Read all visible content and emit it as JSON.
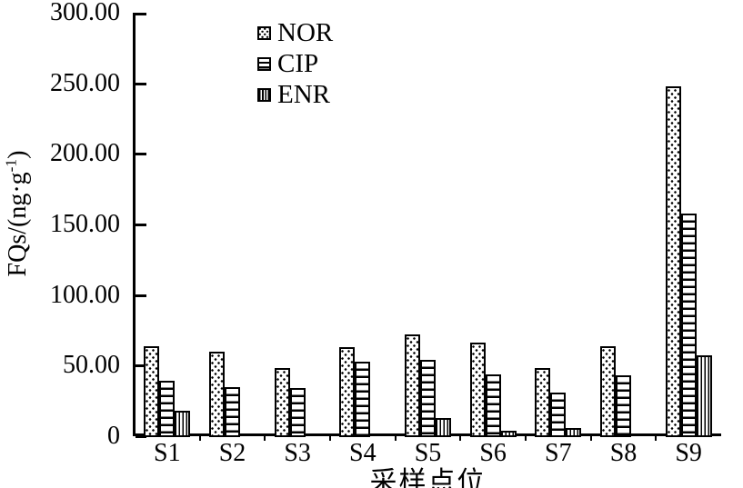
{
  "chart_data": {
    "type": "bar",
    "title": "",
    "categories": [
      "S1",
      "S2",
      "S3",
      "S4",
      "S5",
      "S6",
      "S7",
      "S8",
      "S9"
    ],
    "series": [
      {
        "name": "NOR",
        "pattern": "dots",
        "values": [
          64,
          60,
          48,
          63,
          72,
          66,
          48,
          64,
          248
        ]
      },
      {
        "name": "CIP",
        "pattern": "hlines",
        "values": [
          39,
          35,
          34,
          53,
          54,
          44,
          31,
          43,
          158
        ]
      },
      {
        "name": "ENR",
        "pattern": "vlines",
        "values": [
          18,
          0,
          0,
          0,
          13,
          4,
          6,
          0,
          57
        ]
      }
    ],
    "xlabel": "采样点位",
    "ylabel": "FQs/(ng·g⁻¹)",
    "ylabel_parts": {
      "main": "FQs/(ng·g",
      "sup": "-1",
      "close": ")"
    },
    "ylim": [
      0,
      300
    ],
    "ytick_step": 50,
    "ytick_labels": [
      "300.00",
      "250.00",
      "200.00",
      "150.00",
      "100.00",
      "50.00",
      "0"
    ],
    "grid": false,
    "legend_position": "inside-top-left",
    "colors": {
      "foreground": "#000000",
      "background": "#ffffff"
    }
  }
}
